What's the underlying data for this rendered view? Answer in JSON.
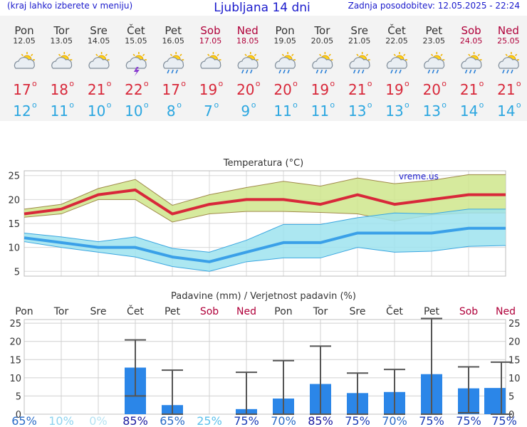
{
  "header": {
    "menu_hint": "(kraj lahko izberete v meniju)",
    "title": "Ljubljana 14 dni",
    "updated": "Zadnja posodobitev: 12.05.2025 - 22:24"
  },
  "days": [
    {
      "name": "Pon",
      "date": "12.05",
      "weekend": false,
      "icon": "partly-cloudy-icon",
      "tmax": "17",
      "tmin": "12"
    },
    {
      "name": "Tor",
      "date": "13.05",
      "weekend": false,
      "icon": "partly-cloudy-icon",
      "tmax": "18",
      "tmin": "11"
    },
    {
      "name": "Sre",
      "date": "14.05",
      "weekend": false,
      "icon": "partly-cloudy-icon",
      "tmax": "21",
      "tmin": "10"
    },
    {
      "name": "Čet",
      "date": "15.05",
      "weekend": false,
      "icon": "thunderstorm-icon",
      "tmax": "22",
      "tmin": "10"
    },
    {
      "name": "Pet",
      "date": "16.05",
      "weekend": false,
      "icon": "sun-rain-icon",
      "tmax": "17",
      "tmin": "8"
    },
    {
      "name": "Sob",
      "date": "17.05",
      "weekend": true,
      "icon": "partly-cloudy-icon",
      "tmax": "19",
      "tmin": "7"
    },
    {
      "name": "Ned",
      "date": "18.05",
      "weekend": true,
      "icon": "sun-rain-icon",
      "tmax": "20",
      "tmin": "9"
    },
    {
      "name": "Pon",
      "date": "19.05",
      "weekend": false,
      "icon": "sun-rain-icon",
      "tmax": "20",
      "tmin": "11"
    },
    {
      "name": "Tor",
      "date": "20.05",
      "weekend": false,
      "icon": "sun-rain-icon",
      "tmax": "19",
      "tmin": "11"
    },
    {
      "name": "Sre",
      "date": "21.05",
      "weekend": false,
      "icon": "sun-rain-icon",
      "tmax": "21",
      "tmin": "13"
    },
    {
      "name": "Čet",
      "date": "22.05",
      "weekend": false,
      "icon": "sun-rain-icon",
      "tmax": "19",
      "tmin": "13"
    },
    {
      "name": "Pet",
      "date": "23.05",
      "weekend": false,
      "icon": "sun-rain-icon",
      "tmax": "20",
      "tmin": "13"
    },
    {
      "name": "Sob",
      "date": "24.05",
      "weekend": true,
      "icon": "sun-rain-icon",
      "tmax": "21",
      "tmin": "14"
    },
    {
      "name": "Ned",
      "date": "25.05",
      "weekend": true,
      "icon": "sun-rain-icon",
      "tmax": "21",
      "tmin": "14"
    }
  ],
  "degree_symbol": "o",
  "colors": {
    "tmax": "#d8283a",
    "tmin": "#2aa6e0",
    "weekend": "#b0003a",
    "weekday": "#333333",
    "max_band": "#cfe68c",
    "min_band": "#9ee3ef",
    "bar": "#2b86e8",
    "header_text": "#1a1acc"
  },
  "chart_data": [
    {
      "type": "line",
      "title": "Temperatura (°C)",
      "watermark": "vreme.us",
      "x": [
        "12.05",
        "13.05",
        "14.05",
        "15.05",
        "16.05",
        "17.05",
        "18.05",
        "19.05",
        "20.05",
        "21.05",
        "22.05",
        "23.05",
        "24.05",
        "25.05"
      ],
      "ylim": [
        4,
        26
      ],
      "yticks": [
        5,
        10,
        15,
        20,
        25
      ],
      "grid": true,
      "series": [
        {
          "key": "max",
          "values": [
            17,
            18,
            21,
            22,
            17,
            19,
            20,
            20,
            19,
            21,
            19,
            20,
            21,
            21
          ],
          "band_low": [
            16.3,
            17,
            20,
            20,
            15.3,
            17,
            17.5,
            17.5,
            17.3,
            17,
            15.5,
            16.8,
            17.2,
            17.2
          ],
          "band_high": [
            18,
            19,
            22.3,
            24.2,
            18.8,
            21,
            22.5,
            23.8,
            22.8,
            24.5,
            23.3,
            24,
            25.2,
            25.2
          ]
        },
        {
          "key": "min",
          "values": [
            12,
            11,
            10,
            10,
            8,
            7,
            9,
            11,
            11,
            13,
            13,
            13,
            14,
            14
          ],
          "band_low": [
            11.2,
            10,
            9,
            8,
            6,
            5,
            7,
            7.8,
            7.8,
            10,
            9,
            9.2,
            10.2,
            10.4
          ],
          "band_high": [
            13,
            12.2,
            11.2,
            12.2,
            9.8,
            9,
            11.5,
            14.8,
            14.8,
            16.2,
            17.2,
            17,
            18,
            18
          ]
        }
      ]
    },
    {
      "type": "bar",
      "title": "Padavine (mm) / Verjetnost padavin (%)",
      "categories": [
        "Pon",
        "Tor",
        "Sre",
        "Čet",
        "Pet",
        "Sob",
        "Ned",
        "Pon",
        "Tor",
        "Sre",
        "Čet",
        "Pet",
        "Sob",
        "Ned"
      ],
      "weekend": [
        false,
        false,
        false,
        false,
        false,
        true,
        true,
        false,
        false,
        false,
        false,
        false,
        true,
        true
      ],
      "values": [
        0,
        0,
        0,
        12.8,
        2.5,
        0,
        1.4,
        4.3,
        8.3,
        5.8,
        6.1,
        11,
        7.1,
        7.2
      ],
      "err_low": [
        0,
        0,
        0,
        5,
        0,
        0,
        0,
        0,
        0,
        0,
        0,
        0,
        0.4,
        0
      ],
      "err_high": [
        0,
        0,
        0,
        20.4,
        12.1,
        0,
        11.5,
        14.7,
        18.7,
        11.3,
        12.3,
        26.3,
        13,
        14.3
      ],
      "probabilities": [
        "65%",
        "10%",
        "0%",
        "85%",
        "65%",
        "25%",
        "75%",
        "70%",
        "85%",
        "75%",
        "70%",
        "75%",
        "75%",
        "75%"
      ],
      "prob_colors": [
        "#2a6cc8",
        "#8ed3ef",
        "#b6e2f2",
        "#1a1aa0",
        "#2a6cc8",
        "#5cc0ec",
        "#1a3cb6",
        "#2a6cc8",
        "#1a1aa0",
        "#1a3cb6",
        "#2a6cc8",
        "#1a3cb6",
        "#1a3cb6",
        "#1a3cb6"
      ],
      "ylim": [
        0,
        26
      ],
      "yticks": [
        "0",
        "5",
        "10",
        "15",
        "20",
        "25"
      ],
      "grid": true
    }
  ]
}
